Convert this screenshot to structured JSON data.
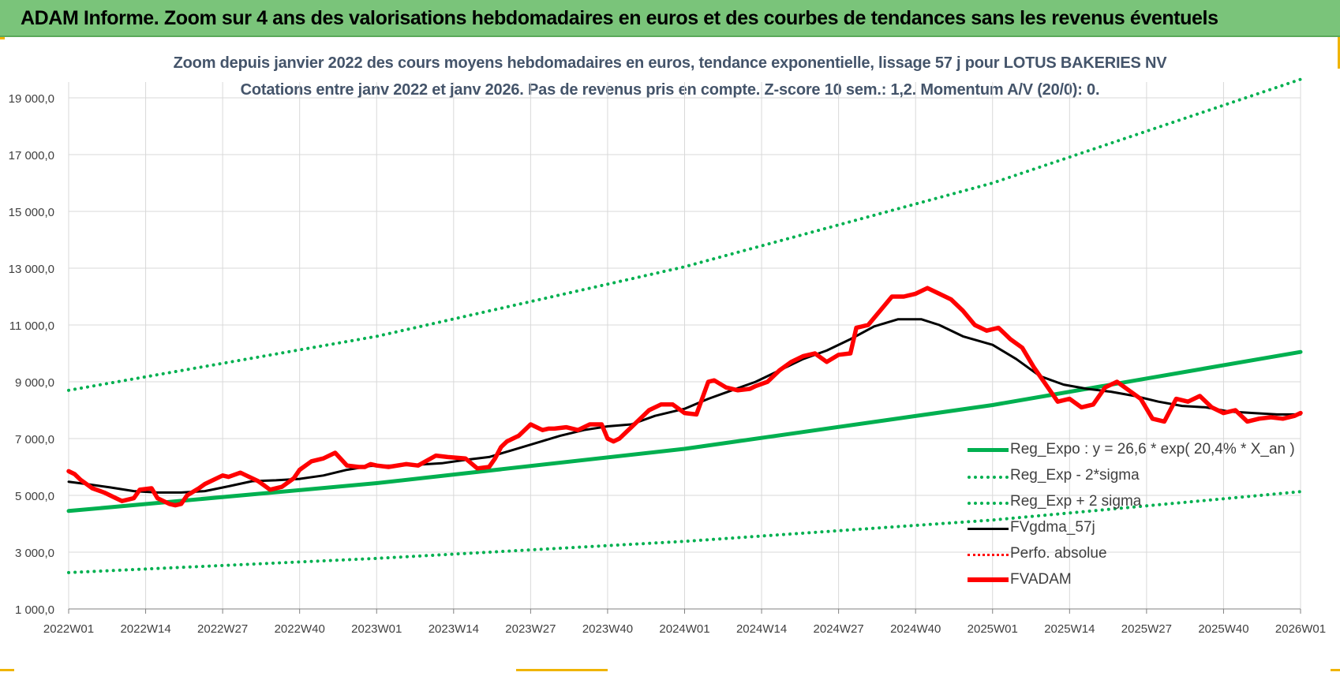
{
  "header": {
    "title": "ADAM Informe. Zoom sur 4 ans des valorisations hebdomadaires en euros et des courbes de tendances sans les revenus éventuels"
  },
  "colors": {
    "header_bg": "#7ac47a",
    "regression": "#00b050",
    "sma": "#000000",
    "price": "#ff0000",
    "perf": "#ff0000",
    "title_text": "#44546a",
    "grid": "#d9d9d9",
    "corner_accent": "#f0b400"
  },
  "chart_data": {
    "type": "line",
    "title": "Zoom depuis janvier 2022 des cours moyens hebdomadaires en euros, tendance exponentielle, lissage 57 j pour LOTUS BAKERIES NV",
    "subtitle": "Cotations entre janv 2022 et janv 2026. Pas de revenus pris en compte. Z-score 10 sem.: 1,2. Momentum A/V (20/0): 0.",
    "xlabel": "",
    "ylabel": "",
    "x_unit": "week",
    "x_range": [
      "2022W01",
      "2026W01"
    ],
    "x_ticks": [
      "2022W01",
      "2022W14",
      "2022W27",
      "2022W40",
      "2023W01",
      "2023W14",
      "2023W27",
      "2023W40",
      "2024W01",
      "2024W14",
      "2024W27",
      "2024W40",
      "2025W01",
      "2025W14",
      "2025W27",
      "2025W40",
      "2026W01"
    ],
    "ylim": [
      1000,
      20000
    ],
    "y_ticks": [
      "1 000,0",
      "3 000,0",
      "5 000,0",
      "7 000,0",
      "9 000,0",
      "11 000,0",
      "13 000,0",
      "15 000,0",
      "17 000,0",
      "19 000,0"
    ],
    "y_tick_values": [
      1000,
      3000,
      5000,
      7000,
      9000,
      11000,
      13000,
      15000,
      17000,
      19000
    ],
    "grid": true,
    "legend_position": "bottom-right",
    "series": [
      {
        "name": "Reg_Expo : y = 26,6 * exp( 20,4% *  X_an )",
        "style": "solid-thick",
        "color": "#00b050",
        "x": [
          "2022W01",
          "2023W01",
          "2024W01",
          "2025W01",
          "2026W01"
        ],
        "values": [
          4450,
          5430,
          6640,
          8180,
          10050
        ]
      },
      {
        "name": "Reg_Exp - 2*sigma",
        "style": "dotted",
        "color": "#00b050",
        "x": [
          "2022W01",
          "2023W01",
          "2024W01",
          "2025W01",
          "2026W01"
        ],
        "values": [
          2280,
          2780,
          3380,
          4130,
          5130
        ]
      },
      {
        "name": "Reg_Exp + 2 sigma",
        "style": "dotted",
        "color": "#00b050",
        "x": [
          "2022W01",
          "2023W01",
          "2024W01",
          "2025W01",
          "2026W01"
        ],
        "values": [
          8700,
          10600,
          13050,
          16000,
          19650
        ]
      },
      {
        "name": "FVgdma_57j",
        "style": "solid",
        "color": "#000000",
        "x": [
          "2022W01",
          "2022W04",
          "2022W08",
          "2022W12",
          "2022W16",
          "2022W20",
          "2022W24",
          "2022W28",
          "2022W32",
          "2022W36",
          "2022W40",
          "2022W44",
          "2022W48",
          "2022W52",
          "2023W04",
          "2023W08",
          "2023W12",
          "2023W16",
          "2023W20",
          "2023W24",
          "2023W28",
          "2023W32",
          "2023W36",
          "2023W40",
          "2023W44",
          "2023W48",
          "2024W01",
          "2024W05",
          "2024W09",
          "2024W13",
          "2024W17",
          "2024W21",
          "2024W25",
          "2024W29",
          "2024W33",
          "2024W37",
          "2024W41",
          "2024W44",
          "2024W48",
          "2025W01",
          "2025W05",
          "2025W09",
          "2025W13",
          "2025W17",
          "2025W21",
          "2025W25",
          "2025W29",
          "2025W33",
          "2025W37",
          "2025W41",
          "2025W45",
          "2025W49",
          "2026W01"
        ],
        "values": [
          5480,
          5400,
          5280,
          5150,
          5100,
          5100,
          5150,
          5320,
          5500,
          5530,
          5580,
          5700,
          5900,
          6040,
          6050,
          6080,
          6130,
          6250,
          6350,
          6600,
          6850,
          7100,
          7300,
          7430,
          7500,
          7800,
          8050,
          8400,
          8700,
          9000,
          9400,
          9800,
          10100,
          10500,
          10950,
          11200,
          11200,
          11000,
          10600,
          10300,
          9800,
          9200,
          8900,
          8750,
          8650,
          8500,
          8300,
          8150,
          8100,
          7950,
          7900,
          7850,
          7850
        ]
      },
      {
        "name": "Perfo. absolue",
        "style": "dotted",
        "color": "#ff0000",
        "x": [],
        "values": []
      },
      {
        "name": "FVADAM",
        "style": "solid-thick",
        "color": "#ff0000",
        "x": [
          "2022W01",
          "2022W02",
          "2022W03",
          "2022W05",
          "2022W07",
          "2022W09",
          "2022W10",
          "2022W12",
          "2022W13",
          "2022W15",
          "2022W16",
          "2022W18",
          "2022W19",
          "2022W20",
          "2022W21",
          "2022W23",
          "2022W24",
          "2022W25",
          "2022W27",
          "2022W28",
          "2022W30",
          "2022W31",
          "2022W33",
          "2022W35",
          "2022W37",
          "2022W39",
          "2022W40",
          "2022W42",
          "2022W44",
          "2022W46",
          "2022W48",
          "2022W50",
          "2022W51",
          "2022W52",
          "2023W01",
          "2023W03",
          "2023W06",
          "2023W08",
          "2023W11",
          "2023W13",
          "2023W16",
          "2023W18",
          "2023W20",
          "2023W21",
          "2023W22",
          "2023W23",
          "2023W25",
          "2023W27",
          "2023W29",
          "2023W30",
          "2023W31",
          "2023W33",
          "2023W35",
          "2023W37",
          "2023W39",
          "2023W40",
          "2023W41",
          "2023W42",
          "2023W44",
          "2023W46",
          "2023W47",
          "2023W49",
          "2023W51",
          "2024W01",
          "2024W03",
          "2024W05",
          "2024W06",
          "2024W08",
          "2024W10",
          "2024W12",
          "2024W13",
          "2024W15",
          "2024W17",
          "2024W19",
          "2024W21",
          "2024W23",
          "2024W25",
          "2024W27",
          "2024W29",
          "2024W30",
          "2024W32",
          "2024W34",
          "2024W36",
          "2024W37",
          "2024W38",
          "2024W40",
          "2024W42",
          "2024W44",
          "2024W46",
          "2024W48",
          "2024W50",
          "2024W52",
          "2025W02",
          "2025W04",
          "2025W06",
          "2025W08",
          "2025W10",
          "2025W12",
          "2025W14",
          "2025W16",
          "2025W18",
          "2025W20",
          "2025W22",
          "2025W24",
          "2025W26",
          "2025W28",
          "2025W30",
          "2025W32",
          "2025W34",
          "2025W36",
          "2025W38",
          "2025W40",
          "2025W42",
          "2025W44",
          "2025W46",
          "2025W48",
          "2025W50",
          "2025W52",
          "2026W01"
        ],
        "values": [
          5850,
          5750,
          5550,
          5250,
          5100,
          4900,
          4800,
          4900,
          5200,
          5250,
          4900,
          4700,
          4650,
          4700,
          5000,
          5250,
          5400,
          5500,
          5700,
          5650,
          5800,
          5700,
          5500,
          5200,
          5300,
          5600,
          5900,
          6200,
          6300,
          6500,
          6050,
          6000,
          6000,
          6100,
          6050,
          6000,
          6100,
          6050,
          6400,
          6350,
          6300,
          5950,
          6000,
          6300,
          6700,
          6900,
          7100,
          7500,
          7300,
          7350,
          7350,
          7400,
          7300,
          7500,
          7500,
          7000,
          6900,
          7000,
          7400,
          7800,
          8000,
          8200,
          8200,
          7900,
          7850,
          9000,
          9050,
          8800,
          8700,
          8750,
          8850,
          9000,
          9400,
          9700,
          9900,
          10000,
          9700,
          9950,
          10000,
          10900,
          11000,
          11500,
          12000,
          12000,
          12000,
          12100,
          12300,
          12100,
          11900,
          11500,
          11000,
          10800,
          10900,
          10500,
          10200,
          9500,
          8900,
          8300,
          8400,
          8100,
          8200,
          8800,
          9000,
          8700,
          8400,
          7700,
          7600,
          8400,
          8300,
          8500,
          8100,
          7900,
          8000,
          7600,
          7700,
          7750,
          7700,
          7800,
          7900
        ]
      }
    ]
  }
}
